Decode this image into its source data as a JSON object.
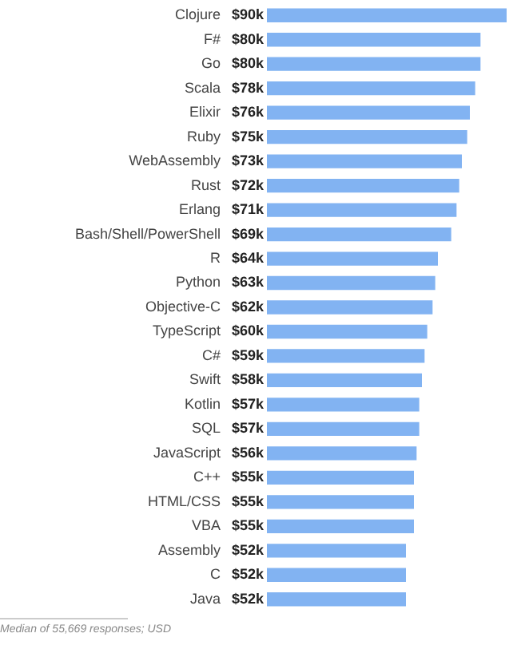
{
  "chart_data": {
    "type": "bar",
    "orientation": "horizontal",
    "categories": [
      "Clojure",
      "F#",
      "Go",
      "Scala",
      "Elixir",
      "Ruby",
      "WebAssembly",
      "Rust",
      "Erlang",
      "Bash/Shell/PowerShell",
      "R",
      "Python",
      "Objective-C",
      "TypeScript",
      "C#",
      "Swift",
      "Kotlin",
      "SQL",
      "JavaScript",
      "C++",
      "HTML/CSS",
      "VBA",
      "Assembly",
      "C",
      "Java"
    ],
    "values": [
      90,
      80,
      80,
      78,
      76,
      75,
      73,
      72,
      71,
      69,
      64,
      63,
      62,
      60,
      59,
      58,
      57,
      57,
      56,
      55,
      55,
      55,
      52,
      52,
      52
    ],
    "value_labels": [
      "$90k",
      "$80k",
      "$80k",
      "$78k",
      "$76k",
      "$75k",
      "$73k",
      "$72k",
      "$71k",
      "$69k",
      "$64k",
      "$63k",
      "$62k",
      "$60k",
      "$59k",
      "$58k",
      "$57k",
      "$57k",
      "$56k",
      "$55k",
      "$55k",
      "$55k",
      "$52k",
      "$52k",
      "$52k"
    ],
    "color": "#82b3f2",
    "annotations": [
      "Median of 55,669 responses; USD"
    ]
  }
}
